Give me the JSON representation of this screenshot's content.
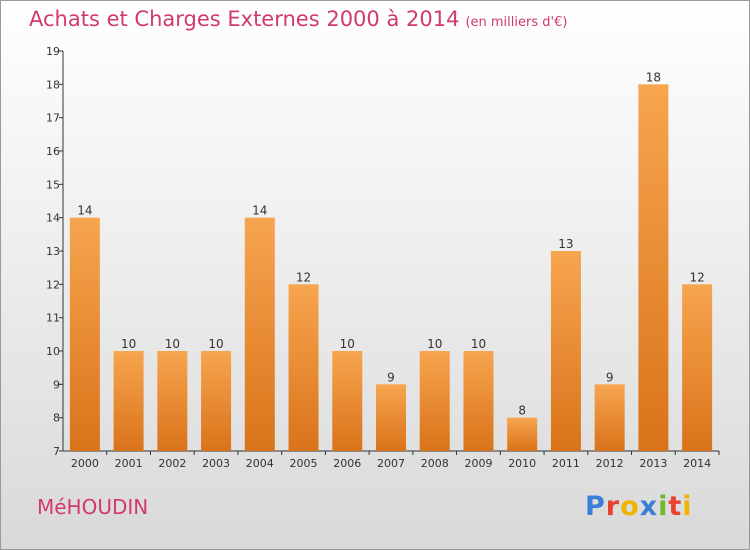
{
  "header": {
    "title": "Achats et Charges Externes 2000 à 2014",
    "subtitle": "(en milliers d'€)"
  },
  "footer": {
    "commune": "MéHOUDIN",
    "logo": "Proxiti"
  },
  "colors": {
    "title": "#d23a6b",
    "bar_top": "#f7a54f",
    "bar_bottom": "#d9731a",
    "logo_letters": [
      "#3a7fd5",
      "#e8412d",
      "#f0b400",
      "#3a7fd5",
      "#6dbb2a",
      "#e8412d",
      "#f0b400"
    ]
  },
  "chart_data": {
    "type": "bar",
    "categories": [
      "2000",
      "2001",
      "2002",
      "2003",
      "2004",
      "2005",
      "2006",
      "2007",
      "2008",
      "2009",
      "2010",
      "2011",
      "2012",
      "2013",
      "2014"
    ],
    "values": [
      14,
      10,
      10,
      10,
      14,
      12,
      10,
      9,
      10,
      10,
      8,
      13,
      9,
      18,
      12
    ],
    "title": "Achats et Charges Externes 2000 à 2014",
    "subtitle": "(en milliers d'€)",
    "ylim": [
      7,
      19
    ],
    "yticks": [
      7,
      8,
      9,
      10,
      11,
      12,
      13,
      14,
      15,
      16,
      17,
      18,
      19
    ],
    "grid": false
  }
}
